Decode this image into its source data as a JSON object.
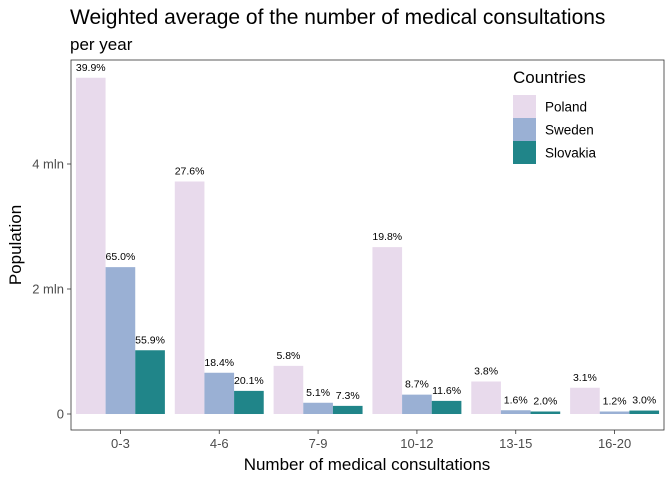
{
  "chart_data": {
    "type": "bar",
    "title": "Weighted average of the number of medical consultations",
    "subtitle": "per year",
    "xlabel": "Number of medical consultations",
    "ylabel": "Population",
    "categories": [
      "0-3",
      "4-6",
      "7-9",
      "10-12",
      "13-15",
      "16-20"
    ],
    "ylim": [
      0,
      5.4
    ],
    "yticks": [
      {
        "value": 0,
        "label": "0"
      },
      {
        "value": 2,
        "label": "2 mln"
      },
      {
        "value": 4,
        "label": "4 mln"
      }
    ],
    "legend": {
      "title": "Countries",
      "position": "top-right"
    },
    "grid": false,
    "series": [
      {
        "name": "Poland",
        "color": "#e8daec",
        "values": [
          5.38,
          3.72,
          0.77,
          2.67,
          0.52,
          0.42
        ],
        "labels": [
          "39.9%",
          "27.6%",
          "5.8%",
          "19.8%",
          "3.8%",
          "3.1%"
        ]
      },
      {
        "name": "Sweden",
        "color": "#9ab0d4",
        "values": [
          2.35,
          0.66,
          0.18,
          0.31,
          0.06,
          0.04
        ],
        "labels": [
          "65.0%",
          "18.4%",
          "5.1%",
          "8.7%",
          "1.6%",
          "1.2%"
        ]
      },
      {
        "name": "Slovakia",
        "color": "#208589",
        "values": [
          1.02,
          0.37,
          0.13,
          0.21,
          0.04,
          0.055
        ],
        "labels": [
          "55.9%",
          "20.1%",
          "7.3%",
          "11.6%",
          "2.0%",
          "3.0%"
        ]
      }
    ]
  }
}
